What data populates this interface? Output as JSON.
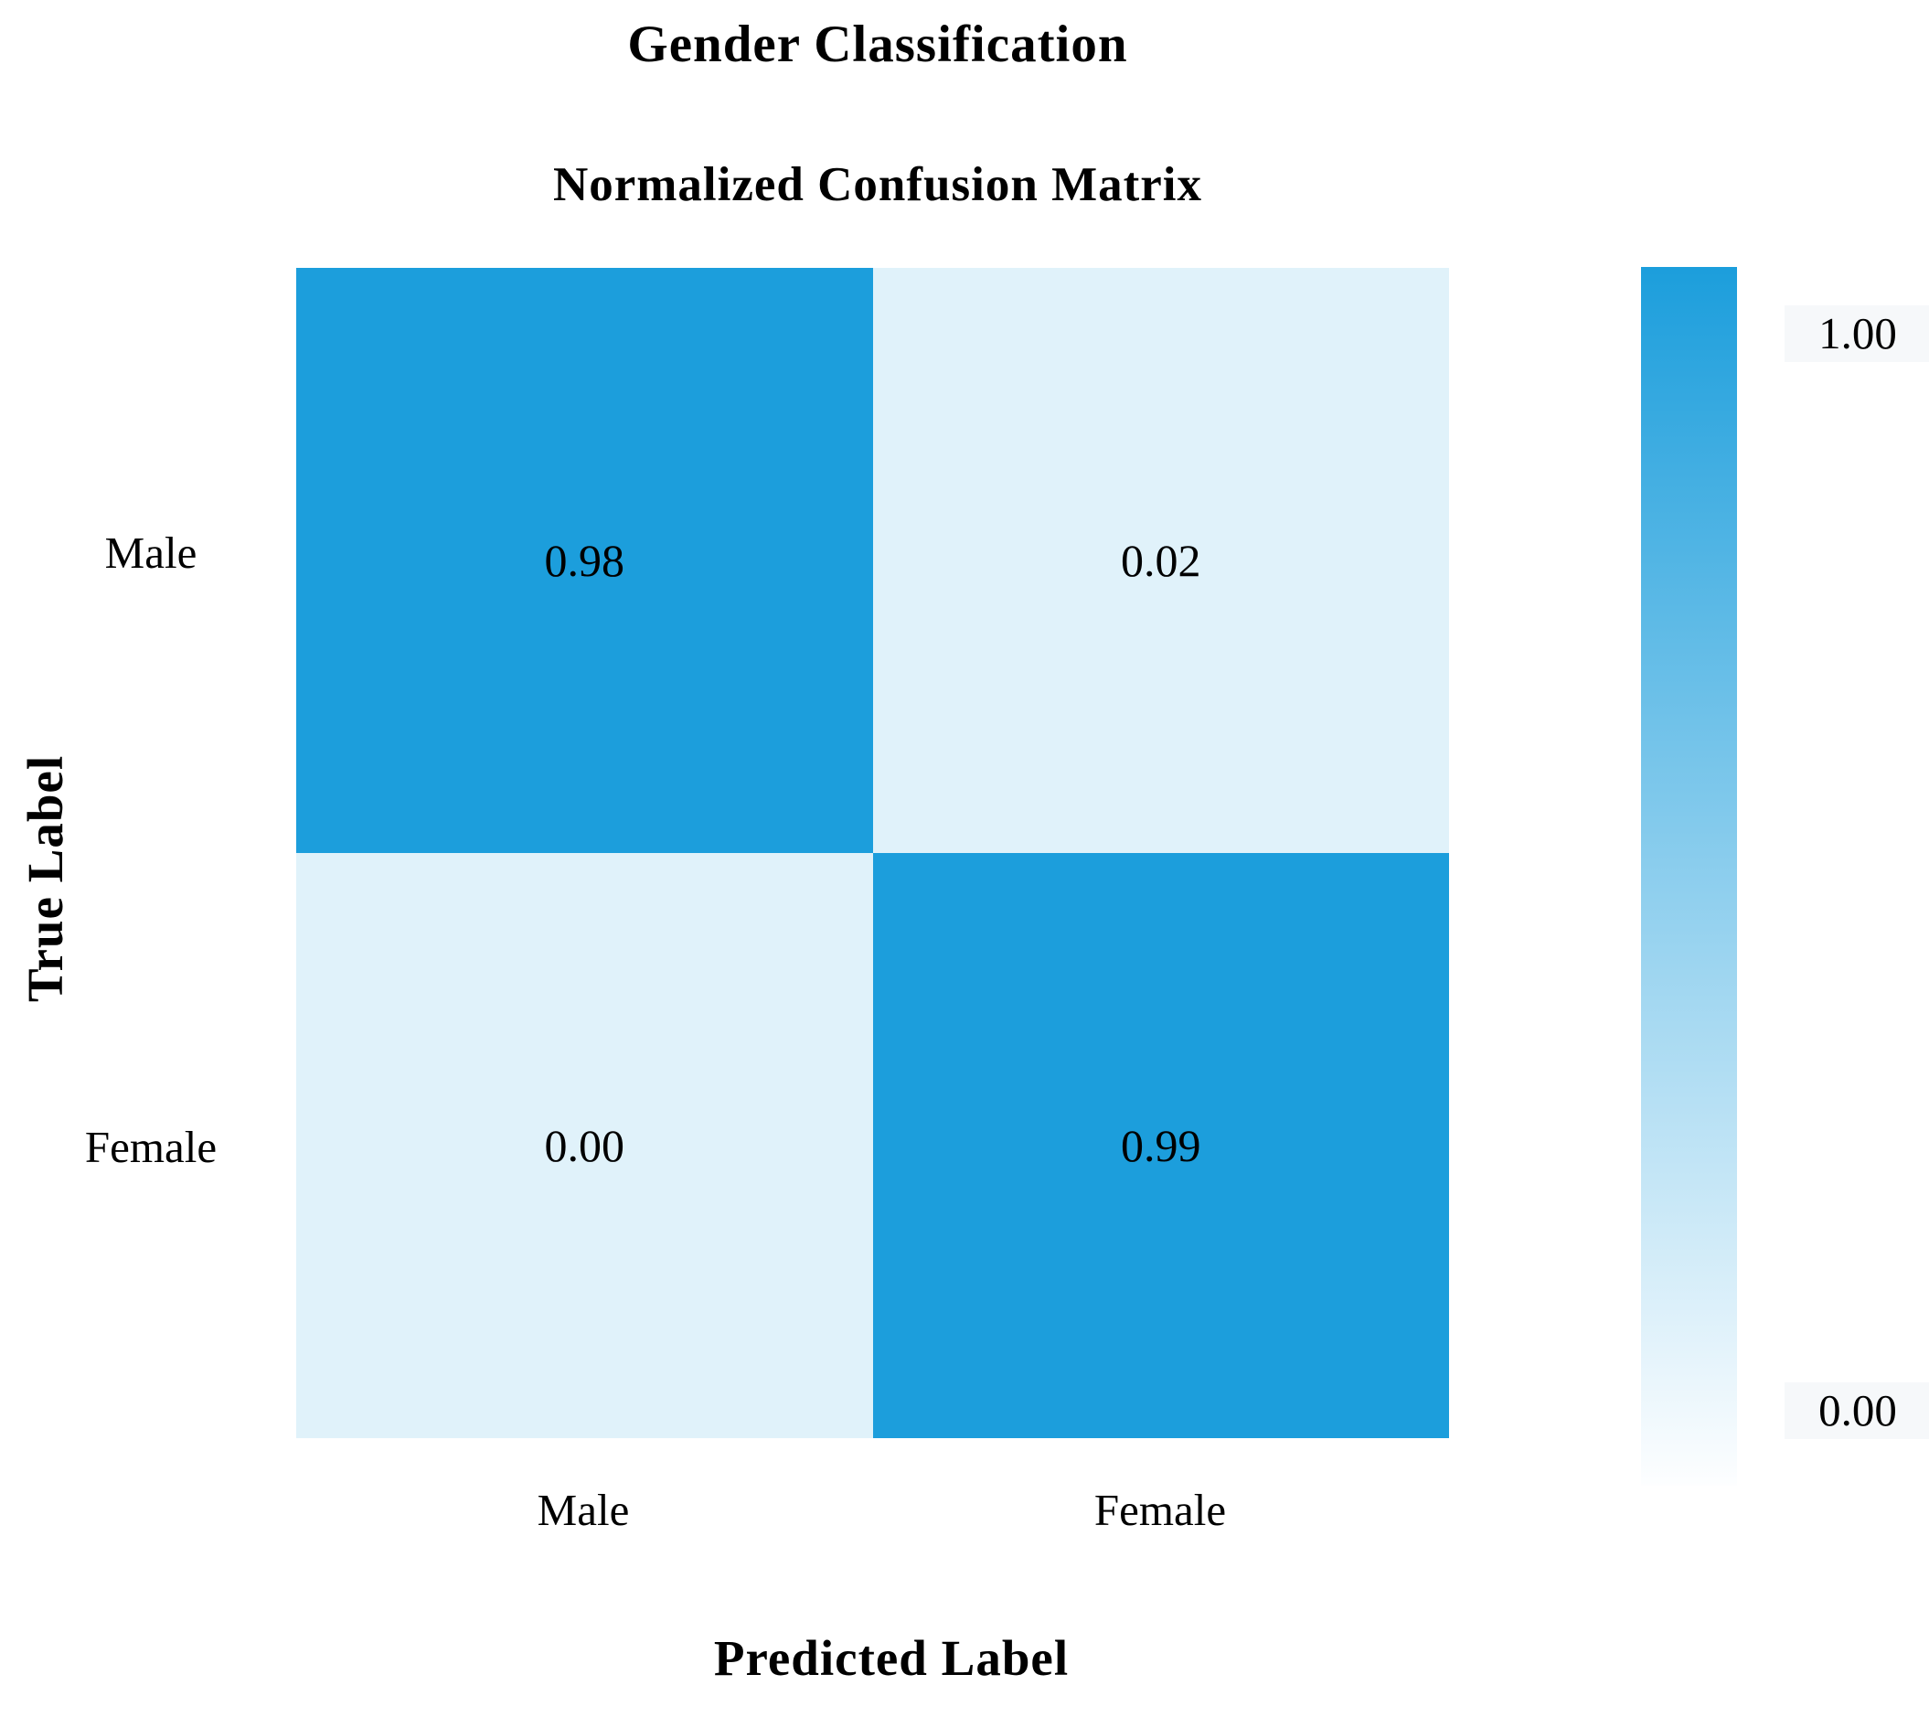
{
  "figure": {
    "title": "Gender Classification",
    "subtitle": "Normalized Confusion Matrix"
  },
  "chart_data": {
    "type": "heatmap",
    "title": "Gender Classification",
    "subtitle": "Normalized Confusion Matrix",
    "xlabel": "Predicted Label",
    "ylabel": "True Label",
    "x_categories": [
      "Male",
      "Female"
    ],
    "y_categories": [
      "Male",
      "Female"
    ],
    "rows": [
      {
        "true_label": "Male",
        "values": [
          0.98,
          0.02
        ],
        "labels": [
          "0.98",
          "0.02"
        ]
      },
      {
        "true_label": "Female",
        "values": [
          0.0,
          0.99
        ],
        "labels": [
          "0.00",
          "0.99"
        ]
      }
    ],
    "value_range": [
      0,
      1
    ],
    "grid": false,
    "colorbar": {
      "orientation": "vertical",
      "position": "right",
      "max_tick": "1.00",
      "min_tick": "0.00"
    },
    "colors": {
      "high_cell": "#1C9EDC",
      "low_cell": "#E0F2FA",
      "colorbar_top": "#1C9EDC",
      "colorbar_bottom": "#FDFEFF",
      "cell_text": "#000000",
      "background": "#FFFFFF"
    }
  }
}
